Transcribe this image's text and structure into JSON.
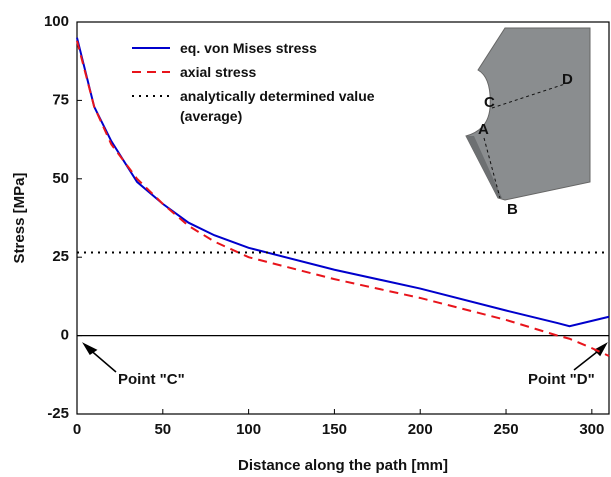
{
  "chart_data": {
    "type": "line",
    "x_label": "Distance along the path [mm]",
    "y_label": "Stress [MPa]",
    "x": [
      0,
      10,
      20,
      35,
      50,
      65,
      80,
      100,
      150,
      200,
      250,
      280,
      287,
      300,
      310
    ],
    "series": [
      {
        "name": "eq. von Mises stress",
        "color": "#0000cc",
        "style": "solid",
        "values": [
          95,
          73,
          62,
          49,
          42,
          36,
          32,
          28,
          21,
          15,
          8,
          4,
          3,
          4.7,
          6
        ]
      },
      {
        "name": "axial stress",
        "color": "#e8141b",
        "style": "dashed",
        "values": [
          94,
          73,
          61,
          50,
          42,
          35,
          30,
          25,
          18,
          12,
          5,
          0,
          -1,
          -4,
          -6.5
        ]
      },
      {
        "name": "analytically determined value\n(average)",
        "color": "#000000",
        "style": "dotted",
        "values": [
          26.5,
          26.5,
          26.5,
          26.5,
          26.5,
          26.5,
          26.5,
          26.5,
          26.5,
          26.5,
          26.5,
          26.5,
          26.5,
          26.5,
          26.5
        ]
      }
    ],
    "xlim": [
      0,
      310
    ],
    "ylim": [
      -25,
      100
    ],
    "xticks": [
      0,
      50,
      100,
      150,
      200,
      250,
      300
    ],
    "yticks": [
      -25,
      0,
      25,
      50,
      75,
      100
    ],
    "annotations": [
      "Point \"C\"",
      "Point \"D\""
    ],
    "inset_labels": [
      "A",
      "B",
      "C",
      "D"
    ]
  }
}
